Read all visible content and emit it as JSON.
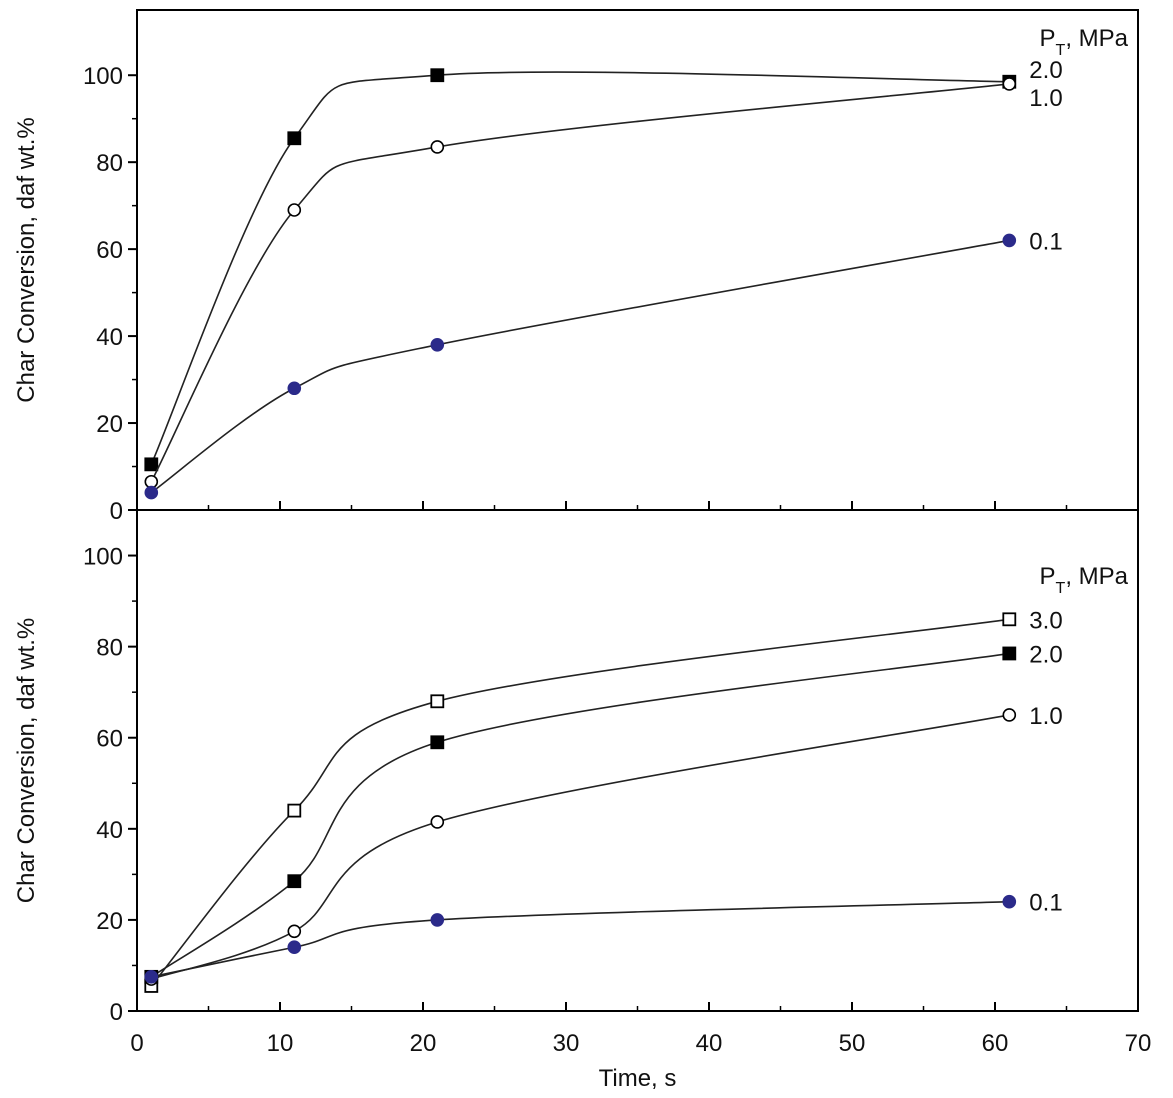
{
  "chart_data": [
    {
      "type": "line",
      "ylabel": "Char Conversion, daf wt.%",
      "legend_title": {
        "text": "P",
        "subscript": "T",
        "rest": ", MPa"
      },
      "x": [
        1,
        11,
        21,
        61
      ],
      "xlim": [
        0,
        70
      ],
      "xticks": [
        0,
        10,
        20,
        30,
        40,
        50,
        60,
        70
      ],
      "ylim": [
        0,
        115
      ],
      "yticks": [
        0,
        20,
        40,
        60,
        80,
        100
      ],
      "series": [
        {
          "name": "2.0",
          "color": "#000000",
          "marker": "square",
          "values": [
            10.5,
            85.5,
            100,
            98.5
          ]
        },
        {
          "name": "1.0",
          "color": "#000000",
          "marker": "circle-open",
          "values": [
            6.5,
            69,
            83.5,
            98
          ]
        },
        {
          "name": "0.1",
          "color": "#2b2a8a",
          "marker": "dot",
          "values": [
            4,
            28,
            38,
            62
          ]
        }
      ]
    },
    {
      "type": "line",
      "ylabel": "Char Conversion, daf wt.%",
      "xlabel": "Time, s",
      "legend_title": {
        "text": "P",
        "subscript": "T",
        "rest": ", MPa"
      },
      "x": [
        1,
        11,
        21,
        61
      ],
      "xlim": [
        0,
        70
      ],
      "xticks": [
        0,
        10,
        20,
        30,
        40,
        50,
        60,
        70
      ],
      "ylim": [
        0,
        110
      ],
      "yticks": [
        0,
        20,
        40,
        60,
        80,
        100
      ],
      "series": [
        {
          "name": "3.0",
          "color": "#000000",
          "marker": "square-open",
          "values": [
            5.5,
            44,
            68,
            86
          ]
        },
        {
          "name": "2.0",
          "color": "#000000",
          "marker": "square",
          "values": [
            7.5,
            28.5,
            59,
            78.5
          ]
        },
        {
          "name": "1.0",
          "color": "#000000",
          "marker": "circle-open",
          "values": [
            7,
            17.5,
            41.5,
            65
          ]
        },
        {
          "name": "0.1",
          "color": "#2b2a8a",
          "marker": "dot",
          "values": [
            7.5,
            14,
            20,
            24
          ]
        }
      ]
    }
  ]
}
